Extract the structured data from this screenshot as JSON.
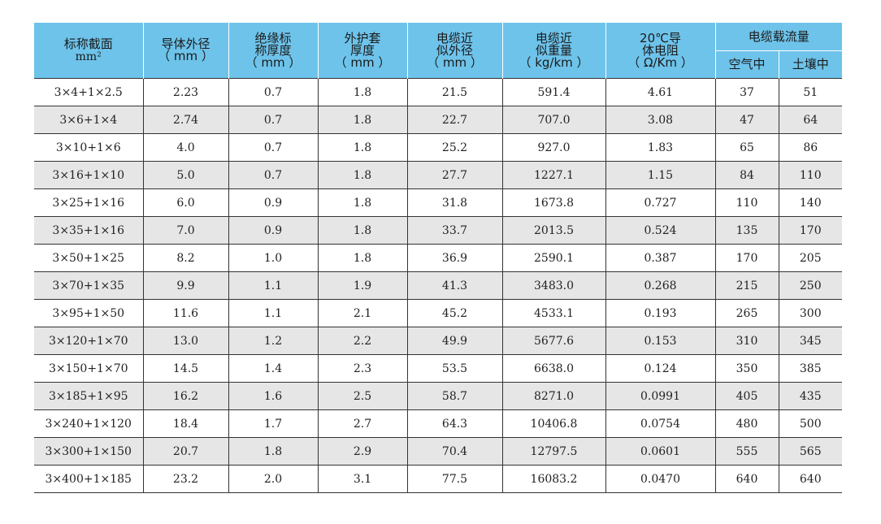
{
  "header": {
    "col1": {
      "line1": "标称截面",
      "line2": "mm²"
    },
    "col2": {
      "line1": "导体外径",
      "line2": "（ mm ）"
    },
    "col3": {
      "line1": "绝缘标",
      "line2": "称厚度",
      "line3": "（ mm ）"
    },
    "col4": {
      "line1": "外护套",
      "line2": "厚度",
      "line3": "（ mm ）"
    },
    "col5": {
      "line1": "电缆近",
      "line2": "似外径",
      "line3": "（ mm ）"
    },
    "col6": {
      "line1": "电缆近",
      "line2": "似重量",
      "line3": "（ kg/km ）"
    },
    "col7": {
      "line1": "20℃导",
      "line2": "体电阻",
      "line3": "（ Ω/Km ）"
    },
    "col8": {
      "group": "电缆载流量",
      "sub1": "空气中",
      "sub2": "土壤中"
    }
  },
  "rows": [
    [
      "3×4+1×2.5",
      "2.23",
      "0.7",
      "1.8",
      "21.5",
      "591.4",
      "4.61",
      "37",
      "51"
    ],
    [
      "3×6+1×4",
      "2.74",
      "0.7",
      "1.8",
      "22.7",
      "707.0",
      "3.08",
      "47",
      "64"
    ],
    [
      "3×10+1×6",
      "4.0",
      "0.7",
      "1.8",
      "25.2",
      "927.0",
      "1.83",
      "65",
      "86"
    ],
    [
      "3×16+1×10",
      "5.0",
      "0.7",
      "1.8",
      "27.7",
      "1227.1",
      "1.15",
      "84",
      "110"
    ],
    [
      "3×25+1×16",
      "6.0",
      "0.9",
      "1.8",
      "31.8",
      "1673.8",
      "0.727",
      "110",
      "140"
    ],
    [
      "3×35+1×16",
      "7.0",
      "0.9",
      "1.8",
      "33.7",
      "2013.5",
      "0.524",
      "135",
      "170"
    ],
    [
      "3×50+1×25",
      "8.2",
      "1.0",
      "1.8",
      "36.9",
      "2590.1",
      "0.387",
      "170",
      "205"
    ],
    [
      "3×70+1×35",
      "9.9",
      "1.1",
      "1.9",
      "41.3",
      "3483.0",
      "0.268",
      "215",
      "250"
    ],
    [
      "3×95+1×50",
      "11.6",
      "1.1",
      "2.1",
      "45.2",
      "4533.1",
      "0.193",
      "265",
      "300"
    ],
    [
      "3×120+1×70",
      "13.0",
      "1.2",
      "2.2",
      "49.9",
      "5677.6",
      "0.153",
      "310",
      "345"
    ],
    [
      "3×150+1×70",
      "14.5",
      "1.4",
      "2.3",
      "53.5",
      "6638.0",
      "0.124",
      "350",
      "385"
    ],
    [
      "3×185+1×95",
      "16.2",
      "1.6",
      "2.5",
      "58.7",
      "8271.0",
      "0.0991",
      "405",
      "435"
    ],
    [
      "3×240+1×120",
      "18.4",
      "1.7",
      "2.7",
      "64.3",
      "10406.8",
      "0.0754",
      "480",
      "500"
    ],
    [
      "3×300+1×150",
      "20.7",
      "1.8",
      "2.9",
      "70.4",
      "12797.5",
      "0.0601",
      "555",
      "565"
    ],
    [
      "3×400+1×185",
      "23.2",
      "2.0",
      "3.1",
      "77.5",
      "16083.2",
      "0.0470",
      "640",
      "640"
    ]
  ]
}
